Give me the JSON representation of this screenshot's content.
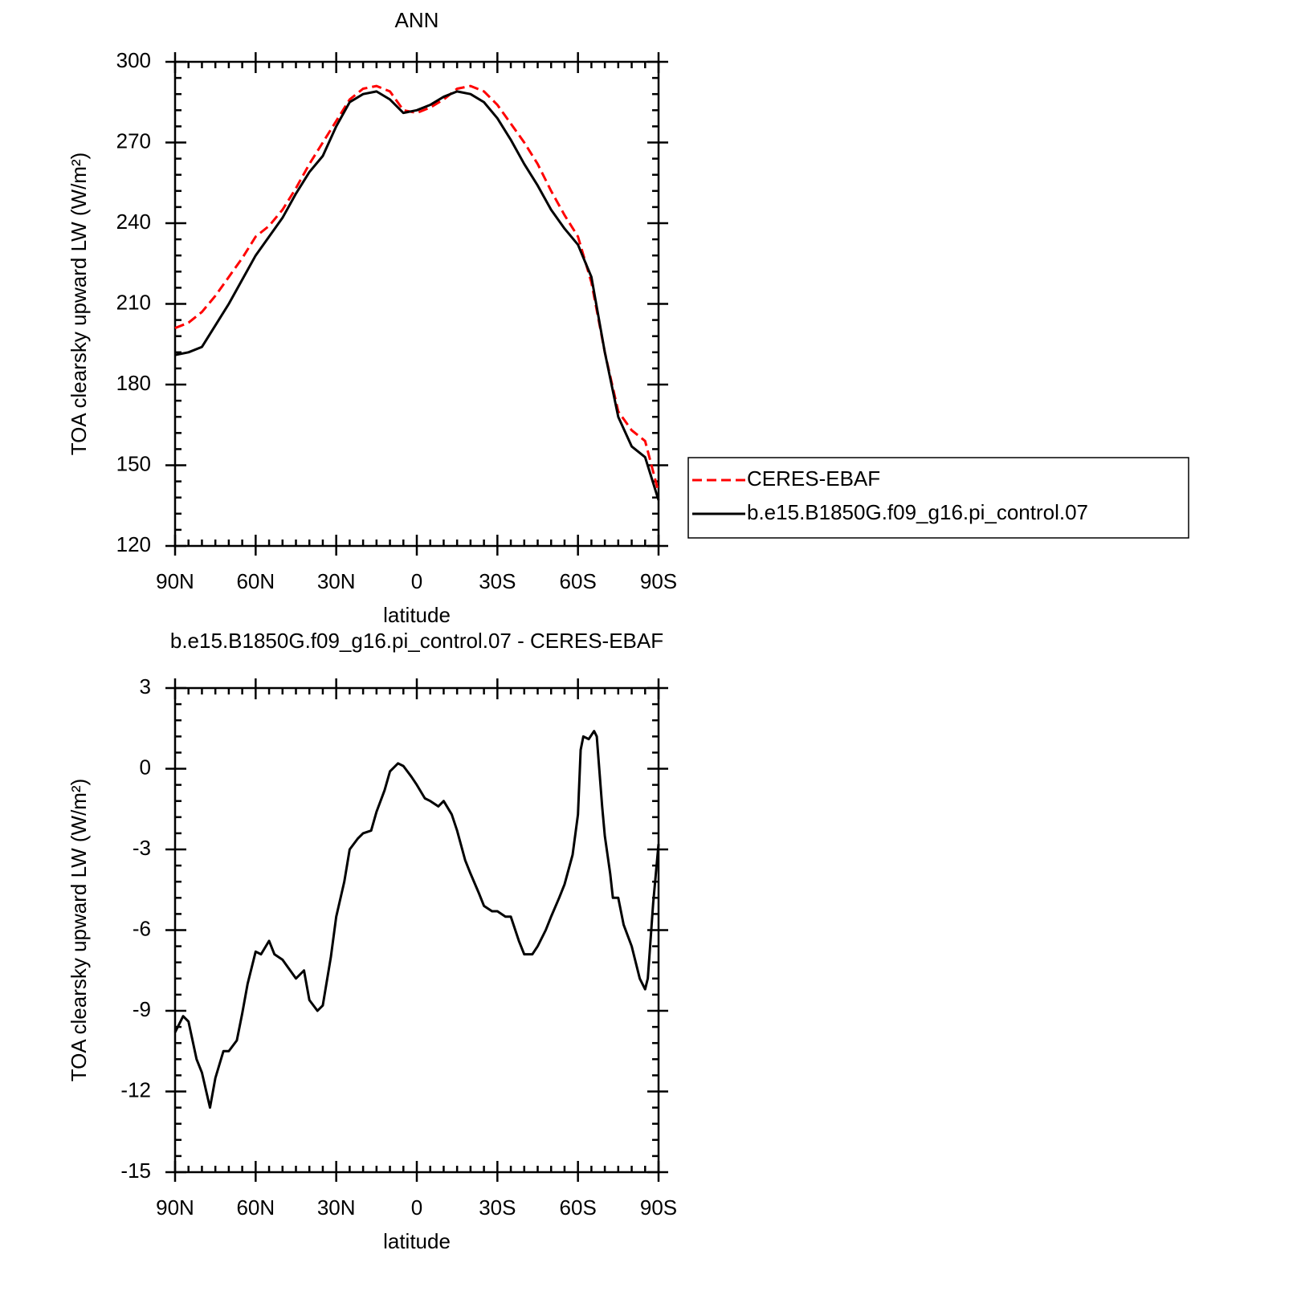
{
  "chart_data": [
    {
      "type": "line",
      "title": "ANN",
      "xlabel": "latitude",
      "ylabel": "TOA clearsky upward LW (W/m²)",
      "x": [
        90,
        85,
        80,
        75,
        70,
        65,
        60,
        55,
        50,
        45,
        40,
        35,
        30,
        25,
        20,
        15,
        10,
        5,
        0,
        -5,
        -10,
        -15,
        -20,
        -25,
        -30,
        -35,
        -40,
        -45,
        -50,
        -55,
        -60,
        -65,
        -70,
        -75,
        -80,
        -85,
        -90
      ],
      "series": [
        {
          "name": "CERES-EBAF",
          "color": "#ff0000",
          "dashed": true,
          "values": [
            201,
            203,
            207,
            213,
            220,
            227,
            235,
            239,
            245,
            253,
            262,
            270,
            278,
            286,
            290,
            291,
            289,
            282,
            281,
            283,
            286,
            290,
            291,
            289,
            284,
            277,
            270,
            262,
            252,
            243,
            235,
            218,
            192,
            170,
            163,
            159,
            140
          ]
        },
        {
          "name": "b.e15.B1850G.f09_g16.pi_control.07",
          "color": "#000000",
          "dashed": false,
          "values": [
            191,
            192,
            194,
            202,
            210,
            219,
            228,
            235,
            242,
            251,
            259,
            265,
            276,
            285,
            288,
            289,
            286,
            281,
            282,
            284,
            287,
            289,
            288,
            285,
            279,
            271,
            262,
            254,
            245,
            238,
            232,
            220,
            192,
            168,
            157,
            153,
            137
          ]
        }
      ],
      "xlim": [
        90,
        -90
      ],
      "xticks": [
        {
          "value": 90,
          "label": "90N"
        },
        {
          "value": 60,
          "label": "60N"
        },
        {
          "value": 30,
          "label": "30N"
        },
        0,
        {
          "value": -30,
          "label": "30S"
        },
        {
          "value": -60,
          "label": "60S"
        },
        {
          "value": -90,
          "label": "90S"
        }
      ],
      "ylim": [
        120,
        300
      ],
      "yticks": [
        120,
        150,
        180,
        210,
        240,
        270,
        300
      ],
      "legend": "right"
    },
    {
      "type": "line",
      "title": "b.e15.B1850G.f09_g16.pi_control.07 - CERES-EBAF",
      "xlabel": "latitude",
      "ylabel": "TOA clearsky upward LW (W/m²)",
      "x": [
        90,
        87,
        85,
        82,
        80,
        77,
        75,
        72,
        70,
        67,
        65,
        63,
        60,
        58,
        55,
        53,
        50,
        45,
        42,
        40,
        37,
        35,
        32,
        30,
        27,
        25,
        22,
        20,
        17,
        15,
        12,
        10,
        7,
        5,
        2,
        0,
        -3,
        -5,
        -8,
        -10,
        -13,
        -15,
        -18,
        -20,
        -23,
        -25,
        -28,
        -30,
        -33,
        -35,
        -38,
        -40,
        -43,
        -45,
        -48,
        -50,
        -53,
        -55,
        -58,
        -60,
        -61,
        -62,
        -64,
        -66,
        -67,
        -69,
        -70,
        -72,
        -73,
        -75,
        -77,
        -80,
        -83,
        -85,
        -86,
        -88,
        -90
      ],
      "series": [
        {
          "name": "diff",
          "color": "#000000",
          "dashed": false,
          "values": [
            -9.8,
            -9.2,
            -9.4,
            -10.8,
            -11.3,
            -12.6,
            -11.5,
            -10.5,
            -10.5,
            -10.1,
            -9.1,
            -8.0,
            -6.8,
            -6.9,
            -6.4,
            -6.9,
            -7.1,
            -7.8,
            -7.5,
            -8.6,
            -9.0,
            -8.8,
            -7.0,
            -5.5,
            -4.2,
            -3.0,
            -2.6,
            -2.4,
            -2.3,
            -1.6,
            -0.8,
            -0.1,
            0.2,
            0.1,
            -0.3,
            -0.6,
            -1.1,
            -1.2,
            -1.4,
            -1.2,
            -1.7,
            -2.3,
            -3.4,
            -3.9,
            -4.6,
            -5.1,
            -5.3,
            -5.3,
            -5.5,
            -5.5,
            -6.4,
            -6.9,
            -6.9,
            -6.6,
            -6.0,
            -5.5,
            -4.8,
            -4.3,
            -3.2,
            -1.7,
            0.7,
            1.2,
            1.1,
            1.4,
            1.2,
            -1.4,
            -2.5,
            -3.9,
            -4.8,
            -4.8,
            -5.8,
            -6.6,
            -7.8,
            -8.2,
            -7.8,
            -5.0,
            -2.8
          ]
        }
      ],
      "xlim": [
        90,
        -90
      ],
      "xticks": [
        {
          "value": 90,
          "label": "90N"
        },
        {
          "value": 60,
          "label": "60N"
        },
        {
          "value": 30,
          "label": "30N"
        },
        0,
        {
          "value": -30,
          "label": "30S"
        },
        {
          "value": -60,
          "label": "60S"
        },
        {
          "value": -90,
          "label": "90S"
        }
      ],
      "ylim": [
        -15,
        3
      ],
      "yticks": [
        -15,
        -12,
        -9,
        -6,
        -3,
        0,
        3
      ]
    }
  ]
}
